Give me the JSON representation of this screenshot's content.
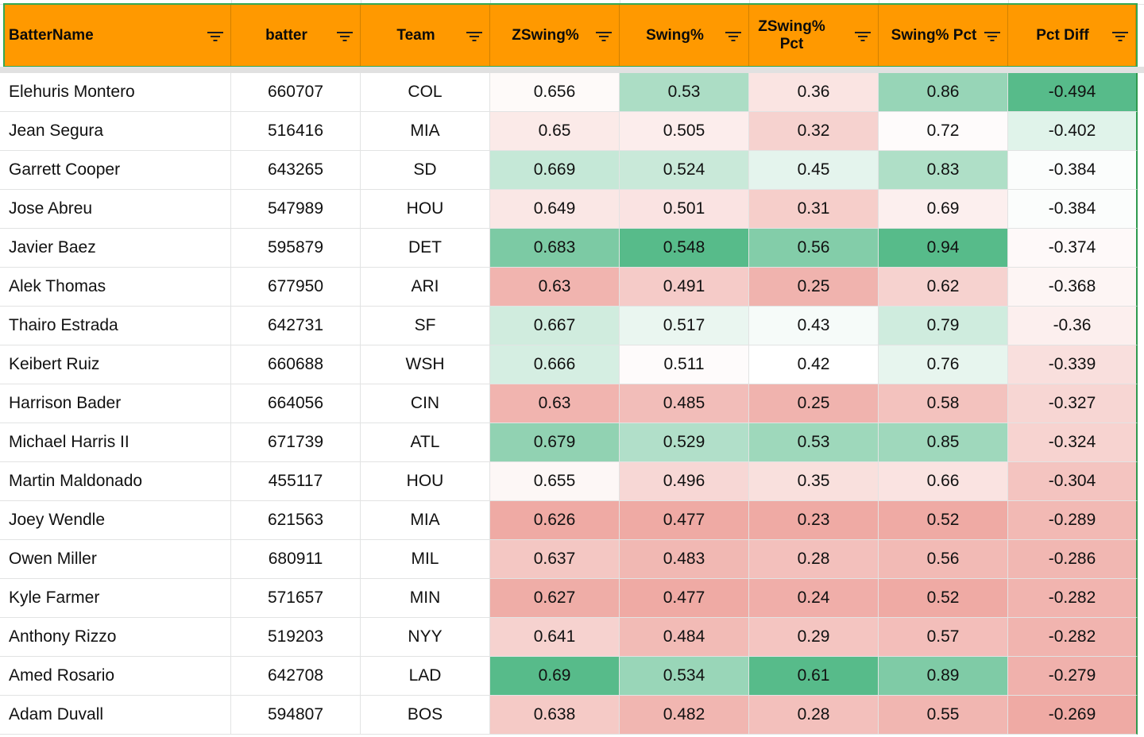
{
  "columns": [
    {
      "key": "name",
      "label": "BatterName"
    },
    {
      "key": "batter",
      "label": "batter"
    },
    {
      "key": "team",
      "label": "Team"
    },
    {
      "key": "zswing",
      "label": "ZSwing%"
    },
    {
      "key": "swing",
      "label": "Swing%"
    },
    {
      "key": "zswing_pct",
      "label": "ZSwing%\nPct"
    },
    {
      "key": "swing_pct",
      "label": "Swing% Pct"
    },
    {
      "key": "pct_diff",
      "label": "Pct Diff"
    }
  ],
  "colors": {
    "header_bg": "#ff9900",
    "selection_border": "#34a853",
    "scale_low": "#e67c73",
    "scale_mid": "#ffffff",
    "scale_high": "#57bb8a"
  },
  "rows": [
    {
      "name": "Elehuris Montero",
      "batter": "660707",
      "team": "COL",
      "zswing": "0.656",
      "swing": "0.53",
      "zswing_pct": "0.36",
      "swing_pct": "0.86",
      "pct_diff": "-0.494"
    },
    {
      "name": "Jean Segura",
      "batter": "516416",
      "team": "MIA",
      "zswing": "0.65",
      "swing": "0.505",
      "zswing_pct": "0.32",
      "swing_pct": "0.72",
      "pct_diff": "-0.402"
    },
    {
      "name": "Garrett Cooper",
      "batter": "643265",
      "team": "SD",
      "zswing": "0.669",
      "swing": "0.524",
      "zswing_pct": "0.45",
      "swing_pct": "0.83",
      "pct_diff": "-0.384"
    },
    {
      "name": "Jose Abreu",
      "batter": "547989",
      "team": "HOU",
      "zswing": "0.649",
      "swing": "0.501",
      "zswing_pct": "0.31",
      "swing_pct": "0.69",
      "pct_diff": "-0.384"
    },
    {
      "name": "Javier Baez",
      "batter": "595879",
      "team": "DET",
      "zswing": "0.683",
      "swing": "0.548",
      "zswing_pct": "0.56",
      "swing_pct": "0.94",
      "pct_diff": "-0.374"
    },
    {
      "name": "Alek Thomas",
      "batter": "677950",
      "team": "ARI",
      "zswing": "0.63",
      "swing": "0.491",
      "zswing_pct": "0.25",
      "swing_pct": "0.62",
      "pct_diff": "-0.368"
    },
    {
      "name": "Thairo Estrada",
      "batter": "642731",
      "team": "SF",
      "zswing": "0.667",
      "swing": "0.517",
      "zswing_pct": "0.43",
      "swing_pct": "0.79",
      "pct_diff": "-0.36"
    },
    {
      "name": "Keibert Ruiz",
      "batter": "660688",
      "team": "WSH",
      "zswing": "0.666",
      "swing": "0.511",
      "zswing_pct": "0.42",
      "swing_pct": "0.76",
      "pct_diff": "-0.339"
    },
    {
      "name": "Harrison Bader",
      "batter": "664056",
      "team": "CIN",
      "zswing": "0.63",
      "swing": "0.485",
      "zswing_pct": "0.25",
      "swing_pct": "0.58",
      "pct_diff": "-0.327"
    },
    {
      "name": "Michael Harris II",
      "batter": "671739",
      "team": "ATL",
      "zswing": "0.679",
      "swing": "0.529",
      "zswing_pct": "0.53",
      "swing_pct": "0.85",
      "pct_diff": "-0.324"
    },
    {
      "name": "Martin Maldonado",
      "batter": "455117",
      "team": "HOU",
      "zswing": "0.655",
      "swing": "0.496",
      "zswing_pct": "0.35",
      "swing_pct": "0.66",
      "pct_diff": "-0.304"
    },
    {
      "name": "Joey Wendle",
      "batter": "621563",
      "team": "MIA",
      "zswing": "0.626",
      "swing": "0.477",
      "zswing_pct": "0.23",
      "swing_pct": "0.52",
      "pct_diff": "-0.289"
    },
    {
      "name": "Owen Miller",
      "batter": "680911",
      "team": "MIL",
      "zswing": "0.637",
      "swing": "0.483",
      "zswing_pct": "0.28",
      "swing_pct": "0.56",
      "pct_diff": "-0.286"
    },
    {
      "name": "Kyle Farmer",
      "batter": "571657",
      "team": "MIN",
      "zswing": "0.627",
      "swing": "0.477",
      "zswing_pct": "0.24",
      "swing_pct": "0.52",
      "pct_diff": "-0.282"
    },
    {
      "name": "Anthony Rizzo",
      "batter": "519203",
      "team": "NYY",
      "zswing": "0.641",
      "swing": "0.484",
      "zswing_pct": "0.29",
      "swing_pct": "0.57",
      "pct_diff": "-0.282"
    },
    {
      "name": "Amed Rosario",
      "batter": "642708",
      "team": "LAD",
      "zswing": "0.69",
      "swing": "0.534",
      "zswing_pct": "0.61",
      "swing_pct": "0.89",
      "pct_diff": "-0.279"
    },
    {
      "name": "Adam Duvall",
      "batter": "594807",
      "team": "BOS",
      "zswing": "0.638",
      "swing": "0.482",
      "zswing_pct": "0.28",
      "swing_pct": "0.55",
      "pct_diff": "-0.269"
    }
  ]
}
